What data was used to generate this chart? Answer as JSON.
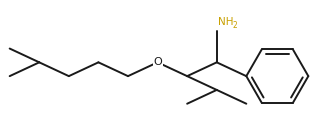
{
  "bg_color": "#ffffff",
  "line_color": "#1a1a1a",
  "nh2_color": "#c8a000",
  "o_color": "#1a1a1a",
  "line_width": 1.4,
  "fig_width": 3.18,
  "fig_height": 1.32,
  "dpi": 100
}
